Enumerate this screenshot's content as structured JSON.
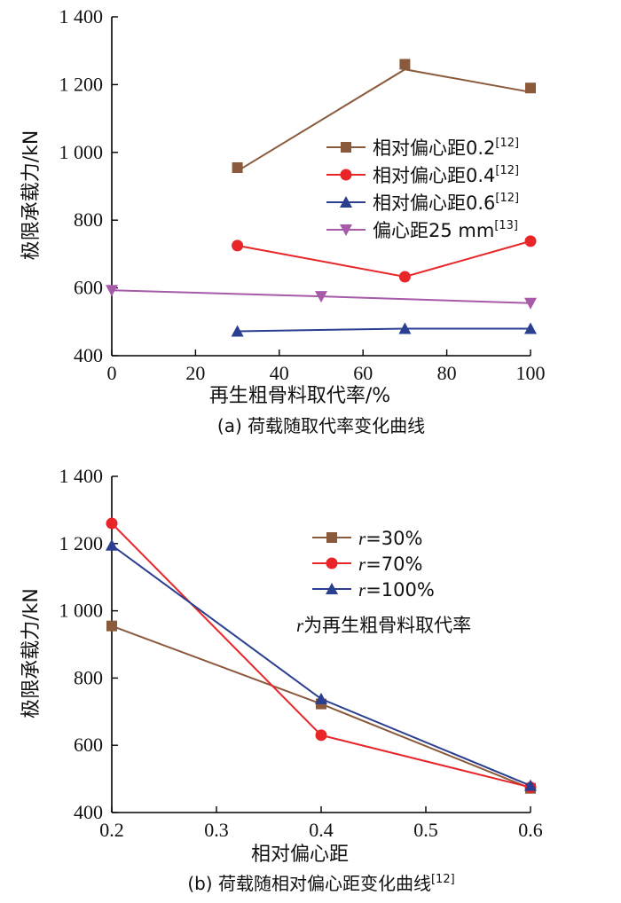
{
  "chart_data": [
    {
      "type": "line",
      "caption": "(a) 荷载随取代率变化曲线",
      "xlabel": "再生粗骨料取代率/%",
      "ylabel": "极限承载力/kN",
      "xlim": [
        0,
        100
      ],
      "ylim": [
        400,
        1400
      ],
      "xticks": [
        0,
        20,
        40,
        60,
        80,
        100
      ],
      "xticklabels": [
        "0",
        "20",
        "40",
        "60",
        "80",
        "100"
      ],
      "yticks": [
        400,
        600,
        800,
        1000,
        1200,
        1400
      ],
      "yticklabels": [
        "400",
        "600",
        "800",
        "1 000",
        "1 200",
        "1 400"
      ],
      "grid": false,
      "legend_position": "right",
      "series": [
        {
          "name": "相对偏心距0.2",
          "ref": "[12]",
          "color": "#8b5a3c",
          "marker": "square",
          "x": [
            30,
            70,
            100
          ],
          "y": [
            955,
            1260,
            1190
          ],
          "line_y": [
            945,
            1245,
            1178
          ]
        },
        {
          "name": "相对偏心距0.4",
          "ref": "[12]",
          "color": "#e8262a",
          "marker": "circle",
          "x": [
            30,
            70,
            100
          ],
          "y": [
            725,
            633,
            738
          ]
        },
        {
          "name": "相对偏心距0.6",
          "ref": "[12]",
          "color": "#2a3f8f",
          "marker": "triangle-up",
          "x": [
            30,
            70,
            100
          ],
          "y": [
            472,
            480,
            480
          ]
        },
        {
          "name": "偏心距25 mm",
          "ref": "[13]",
          "color": "#a65aa8",
          "marker": "triangle-down",
          "x": [
            0,
            50,
            100
          ],
          "y": [
            593,
            575,
            555
          ]
        }
      ]
    },
    {
      "type": "line",
      "caption": "(b) 荷载随相对偏心距变化曲线",
      "caption_ref": "[12]",
      "xlabel": "相对偏心距",
      "ylabel": "极限承载力/kN",
      "xlim": [
        0.2,
        0.6
      ],
      "ylim": [
        400,
        1400
      ],
      "xticks": [
        0.2,
        0.3,
        0.4,
        0.5,
        0.6
      ],
      "xticklabels": [
        "0.2",
        "0.3",
        "0.4",
        "0.5",
        "0.6"
      ],
      "yticks": [
        400,
        600,
        800,
        1000,
        1200,
        1400
      ],
      "yticklabels": [
        "400",
        "600",
        "800",
        "1 000",
        "1 200",
        "1 400"
      ],
      "grid": false,
      "legend_position": "top-right",
      "annotation": {
        "r": "r",
        "text": "为再生粗骨料取代率"
      },
      "series": [
        {
          "name_r": "r",
          "name": "=30%",
          "color": "#8b5a3c",
          "marker": "square",
          "x": [
            0.2,
            0.4,
            0.6
          ],
          "y": [
            955,
            723,
            472
          ]
        },
        {
          "name_r": "r",
          "name": "=70%",
          "color": "#e8262a",
          "marker": "circle",
          "x": [
            0.2,
            0.4,
            0.6
          ],
          "y": [
            1260,
            630,
            475
          ]
        },
        {
          "name_r": "r",
          "name": "=100%",
          "color": "#2a3f8f",
          "marker": "triangle-up",
          "x": [
            0.2,
            0.4,
            0.6
          ],
          "y": [
            1195,
            738,
            480
          ]
        }
      ]
    }
  ]
}
